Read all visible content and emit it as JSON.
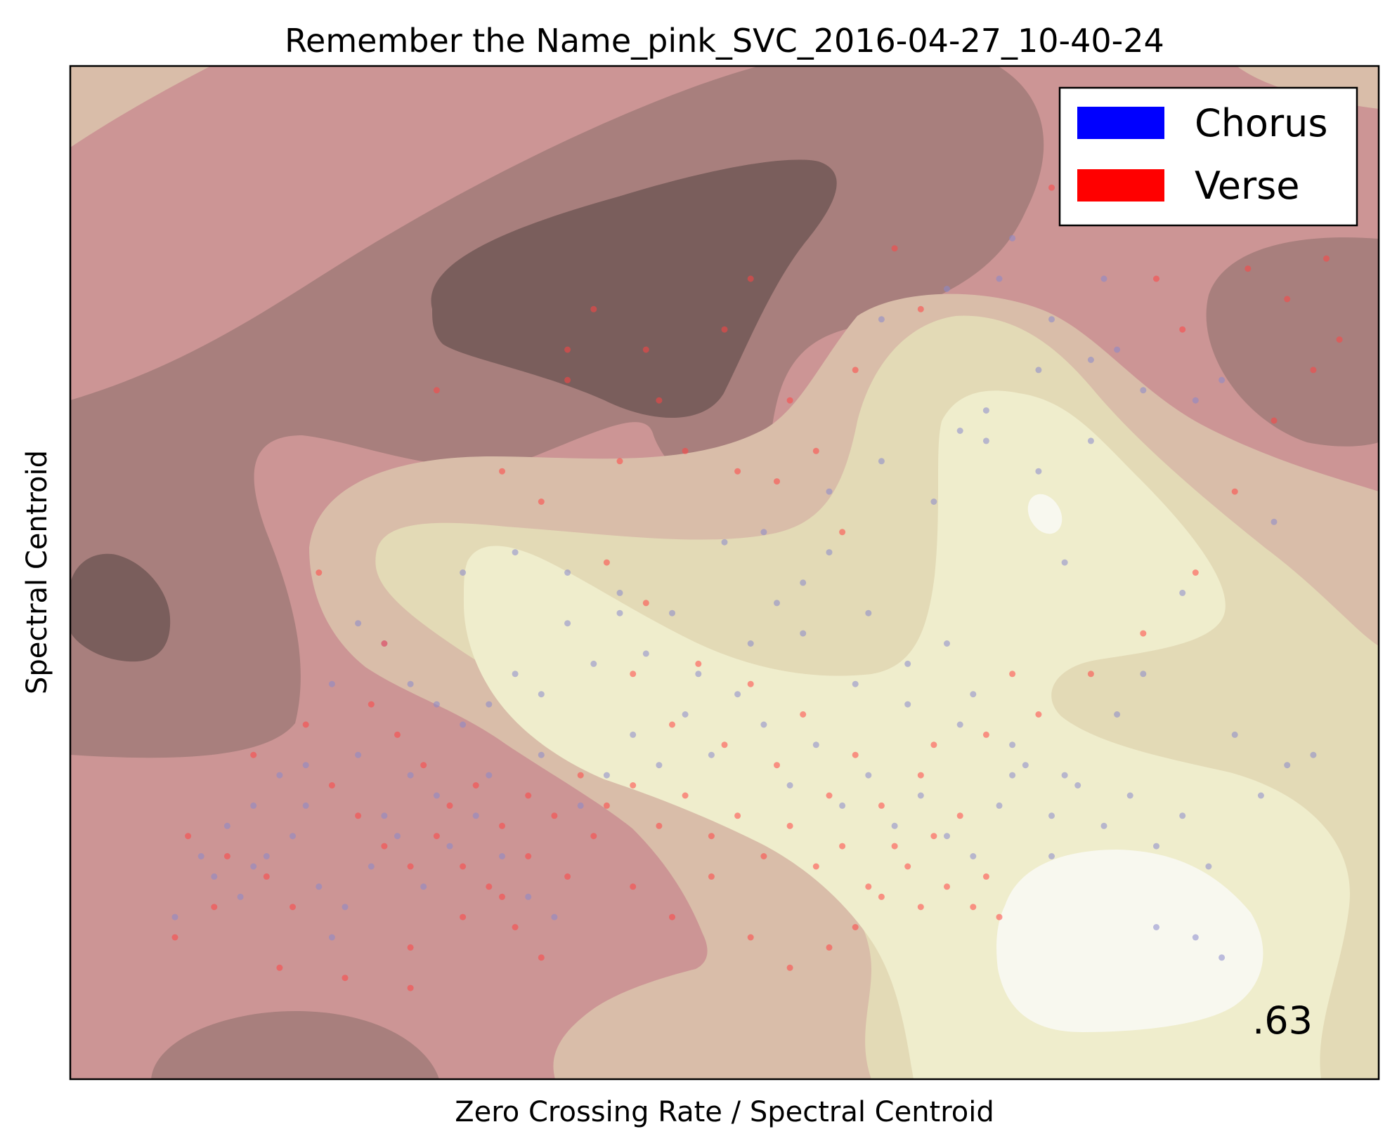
{
  "chart_data": {
    "type": "scatter",
    "title": "Remember the Name_pink_SVC_2016-04-27_10-40-24",
    "xlabel": "Zero Crossing Rate / Spectral Centroid",
    "ylabel": "Spectral Centroid",
    "xlim": [
      0,
      1
    ],
    "ylim": [
      0,
      1
    ],
    "grid": false,
    "ticks_visible": false,
    "legend": {
      "placement": "top-right",
      "entries": [
        {
          "label": "Chorus",
          "color": "#0000ff"
        },
        {
          "label": "Verse",
          "color": "#ff0000"
        }
      ]
    },
    "score_annotation": ".63",
    "decision_surface": {
      "colormap": "pink",
      "levels": [
        "#7a5e5c",
        "#a87f7d",
        "#cc9595",
        "#d9bda9",
        "#e3dab6",
        "#efedcc",
        "#f8f8ef"
      ]
    },
    "series": [
      {
        "name": "Chorus",
        "color": "#8888cc",
        "points": [
          [
            0.62,
            0.75
          ],
          [
            0.67,
            0.78
          ],
          [
            0.71,
            0.79
          ],
          [
            0.72,
            0.83
          ],
          [
            0.68,
            0.64
          ],
          [
            0.7,
            0.63
          ],
          [
            0.74,
            0.7
          ],
          [
            0.79,
            0.79
          ],
          [
            0.8,
            0.72
          ],
          [
            0.78,
            0.71
          ],
          [
            0.86,
            0.67
          ],
          [
            0.88,
            0.69
          ],
          [
            0.82,
            0.68
          ],
          [
            0.75,
            0.75
          ],
          [
            0.92,
            0.55
          ],
          [
            0.76,
            0.51
          ],
          [
            0.5,
            0.53
          ],
          [
            0.53,
            0.54
          ],
          [
            0.56,
            0.49
          ],
          [
            0.58,
            0.52
          ],
          [
            0.61,
            0.46
          ],
          [
            0.64,
            0.41
          ],
          [
            0.67,
            0.43
          ],
          [
            0.69,
            0.38
          ],
          [
            0.72,
            0.3
          ],
          [
            0.75,
            0.22
          ],
          [
            0.83,
            0.15
          ],
          [
            0.86,
            0.14
          ],
          [
            0.88,
            0.12
          ],
          [
            0.8,
            0.36
          ],
          [
            0.82,
            0.4
          ],
          [
            0.85,
            0.48
          ],
          [
            0.54,
            0.47
          ],
          [
            0.46,
            0.46
          ],
          [
            0.44,
            0.42
          ],
          [
            0.42,
            0.46
          ],
          [
            0.4,
            0.41
          ],
          [
            0.38,
            0.45
          ],
          [
            0.36,
            0.38
          ],
          [
            0.34,
            0.4
          ],
          [
            0.32,
            0.37
          ],
          [
            0.3,
            0.35
          ],
          [
            0.28,
            0.37
          ],
          [
            0.26,
            0.39
          ],
          [
            0.24,
            0.43
          ],
          [
            0.22,
            0.45
          ],
          [
            0.2,
            0.39
          ],
          [
            0.18,
            0.31
          ],
          [
            0.16,
            0.3
          ],
          [
            0.14,
            0.27
          ],
          [
            0.12,
            0.25
          ],
          [
            0.1,
            0.22
          ],
          [
            0.08,
            0.16
          ],
          [
            0.11,
            0.2
          ],
          [
            0.13,
            0.18
          ],
          [
            0.15,
            0.22
          ],
          [
            0.17,
            0.24
          ],
          [
            0.19,
            0.19
          ],
          [
            0.21,
            0.17
          ],
          [
            0.23,
            0.21
          ],
          [
            0.25,
            0.24
          ],
          [
            0.27,
            0.19
          ],
          [
            0.29,
            0.23
          ],
          [
            0.31,
            0.26
          ],
          [
            0.33,
            0.22
          ],
          [
            0.35,
            0.18
          ],
          [
            0.37,
            0.16
          ],
          [
            0.39,
            0.27
          ],
          [
            0.41,
            0.3
          ],
          [
            0.43,
            0.34
          ],
          [
            0.45,
            0.31
          ],
          [
            0.47,
            0.36
          ],
          [
            0.49,
            0.32
          ],
          [
            0.51,
            0.38
          ],
          [
            0.53,
            0.35
          ],
          [
            0.55,
            0.29
          ],
          [
            0.57,
            0.33
          ],
          [
            0.59,
            0.27
          ],
          [
            0.61,
            0.3
          ],
          [
            0.63,
            0.25
          ],
          [
            0.65,
            0.28
          ],
          [
            0.67,
            0.24
          ],
          [
            0.69,
            0.22
          ],
          [
            0.71,
            0.27
          ],
          [
            0.73,
            0.31
          ],
          [
            0.75,
            0.26
          ],
          [
            0.77,
            0.29
          ],
          [
            0.79,
            0.25
          ],
          [
            0.81,
            0.28
          ],
          [
            0.83,
            0.23
          ],
          [
            0.85,
            0.26
          ],
          [
            0.87,
            0.21
          ],
          [
            0.89,
            0.34
          ],
          [
            0.91,
            0.28
          ],
          [
            0.93,
            0.31
          ],
          [
            0.95,
            0.32
          ],
          [
            0.48,
            0.4
          ],
          [
            0.52,
            0.43
          ],
          [
            0.56,
            0.44
          ],
          [
            0.6,
            0.39
          ],
          [
            0.64,
            0.37
          ],
          [
            0.68,
            0.35
          ],
          [
            0.72,
            0.33
          ],
          [
            0.76,
            0.3
          ],
          [
            0.58,
            0.58
          ],
          [
            0.62,
            0.61
          ],
          [
            0.66,
            0.57
          ],
          [
            0.7,
            0.66
          ],
          [
            0.74,
            0.6
          ],
          [
            0.78,
            0.63
          ],
          [
            0.3,
            0.5
          ],
          [
            0.34,
            0.52
          ],
          [
            0.38,
            0.5
          ],
          [
            0.42,
            0.48
          ],
          [
            0.26,
            0.3
          ],
          [
            0.22,
            0.32
          ],
          [
            0.18,
            0.27
          ],
          [
            0.14,
            0.21
          ],
          [
            0.2,
            0.14
          ],
          [
            0.24,
            0.26
          ],
          [
            0.28,
            0.28
          ],
          [
            0.32,
            0.3
          ],
          [
            0.36,
            0.32
          ]
        ]
      },
      {
        "name": "Verse",
        "color": "#ff4444",
        "points": [
          [
            0.38,
            0.72
          ],
          [
            0.4,
            0.76
          ],
          [
            0.38,
            0.69
          ],
          [
            0.5,
            0.74
          ],
          [
            0.52,
            0.79
          ],
          [
            0.45,
            0.67
          ],
          [
            0.55,
            0.67
          ],
          [
            0.63,
            0.82
          ],
          [
            0.57,
            0.62
          ],
          [
            0.54,
            0.59
          ],
          [
            0.59,
            0.54
          ],
          [
            0.47,
            0.62
          ],
          [
            0.42,
            0.61
          ],
          [
            0.51,
            0.6
          ],
          [
            0.36,
            0.57
          ],
          [
            0.41,
            0.51
          ],
          [
            0.44,
            0.47
          ],
          [
            0.48,
            0.41
          ],
          [
            0.52,
            0.39
          ],
          [
            0.56,
            0.36
          ],
          [
            0.6,
            0.32
          ],
          [
            0.65,
            0.3
          ],
          [
            0.7,
            0.34
          ],
          [
            0.74,
            0.36
          ],
          [
            0.78,
            0.4
          ],
          [
            0.82,
            0.44
          ],
          [
            0.86,
            0.5
          ],
          [
            0.89,
            0.58
          ],
          [
            0.92,
            0.65
          ],
          [
            0.95,
            0.7
          ],
          [
            0.97,
            0.73
          ],
          [
            0.75,
            0.88
          ],
          [
            0.78,
            0.89
          ],
          [
            0.8,
            0.87
          ],
          [
            0.83,
            0.79
          ],
          [
            0.85,
            0.74
          ],
          [
            0.9,
            0.8
          ],
          [
            0.93,
            0.77
          ],
          [
            0.96,
            0.81
          ],
          [
            0.28,
            0.68
          ],
          [
            0.33,
            0.6
          ],
          [
            0.19,
            0.5
          ],
          [
            0.24,
            0.43
          ],
          [
            0.18,
            0.35
          ],
          [
            0.09,
            0.24
          ],
          [
            0.12,
            0.22
          ],
          [
            0.15,
            0.2
          ],
          [
            0.08,
            0.14
          ],
          [
            0.16,
            0.11
          ],
          [
            0.21,
            0.1
          ],
          [
            0.26,
            0.09
          ],
          [
            0.3,
            0.16
          ],
          [
            0.33,
            0.18
          ],
          [
            0.35,
            0.22
          ],
          [
            0.38,
            0.2
          ],
          [
            0.4,
            0.24
          ],
          [
            0.43,
            0.19
          ],
          [
            0.46,
            0.16
          ],
          [
            0.49,
            0.2
          ],
          [
            0.52,
            0.14
          ],
          [
            0.55,
            0.11
          ],
          [
            0.58,
            0.13
          ],
          [
            0.6,
            0.15
          ],
          [
            0.62,
            0.18
          ],
          [
            0.64,
            0.21
          ],
          [
            0.66,
            0.24
          ],
          [
            0.68,
            0.26
          ],
          [
            0.7,
            0.2
          ],
          [
            0.25,
            0.34
          ],
          [
            0.27,
            0.31
          ],
          [
            0.29,
            0.27
          ],
          [
            0.31,
            0.29
          ],
          [
            0.33,
            0.25
          ],
          [
            0.35,
            0.28
          ],
          [
            0.37,
            0.26
          ],
          [
            0.39,
            0.3
          ],
          [
            0.41,
            0.27
          ],
          [
            0.43,
            0.29
          ],
          [
            0.45,
            0.25
          ],
          [
            0.47,
            0.28
          ],
          [
            0.49,
            0.24
          ],
          [
            0.51,
            0.26
          ],
          [
            0.53,
            0.22
          ],
          [
            0.55,
            0.25
          ],
          [
            0.57,
            0.21
          ],
          [
            0.59,
            0.23
          ],
          [
            0.61,
            0.19
          ],
          [
            0.63,
            0.23
          ],
          [
            0.65,
            0.17
          ],
          [
            0.67,
            0.19
          ],
          [
            0.69,
            0.17
          ],
          [
            0.71,
            0.16
          ],
          [
            0.14,
            0.32
          ],
          [
            0.2,
            0.29
          ],
          [
            0.22,
            0.26
          ],
          [
            0.24,
            0.23
          ],
          [
            0.26,
            0.21
          ],
          [
            0.28,
            0.24
          ],
          [
            0.3,
            0.21
          ],
          [
            0.32,
            0.19
          ],
          [
            0.34,
            0.15
          ],
          [
            0.36,
            0.12
          ],
          [
            0.23,
            0.37
          ],
          [
            0.17,
            0.17
          ],
          [
            0.11,
            0.17
          ],
          [
            0.26,
            0.13
          ],
          [
            0.43,
            0.4
          ],
          [
            0.46,
            0.35
          ],
          [
            0.5,
            0.33
          ],
          [
            0.54,
            0.31
          ],
          [
            0.58,
            0.28
          ],
          [
            0.62,
            0.27
          ],
          [
            0.66,
            0.33
          ],
          [
            0.72,
            0.4
          ],
          [
            0.44,
            0.72
          ],
          [
            0.6,
            0.7
          ],
          [
            0.65,
            0.76
          ]
        ]
      }
    ]
  }
}
